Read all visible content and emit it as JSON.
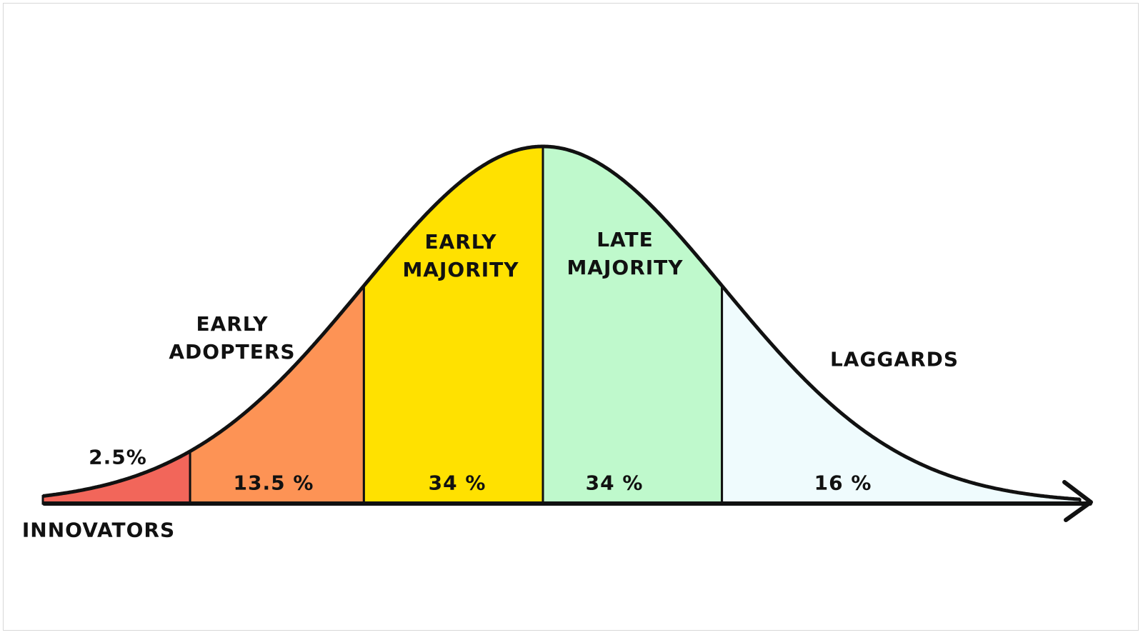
{
  "chart_data": {
    "type": "bell",
    "categories": [
      "INNOVATORS",
      "EARLY ADOPTERS",
      "EARLY MAJORITY",
      "LATE MAJORITY",
      "LAGGARDS"
    ],
    "values": [
      2.5,
      13.5,
      34,
      34,
      16
    ],
    "value_labels": [
      "2.5%",
      "13.5 %",
      "34 %",
      "34 %",
      "16 %"
    ],
    "colors": [
      "#f2665a",
      "#fd9355",
      "#ffe100",
      "#bff9cc",
      "#effbfd"
    ]
  }
}
